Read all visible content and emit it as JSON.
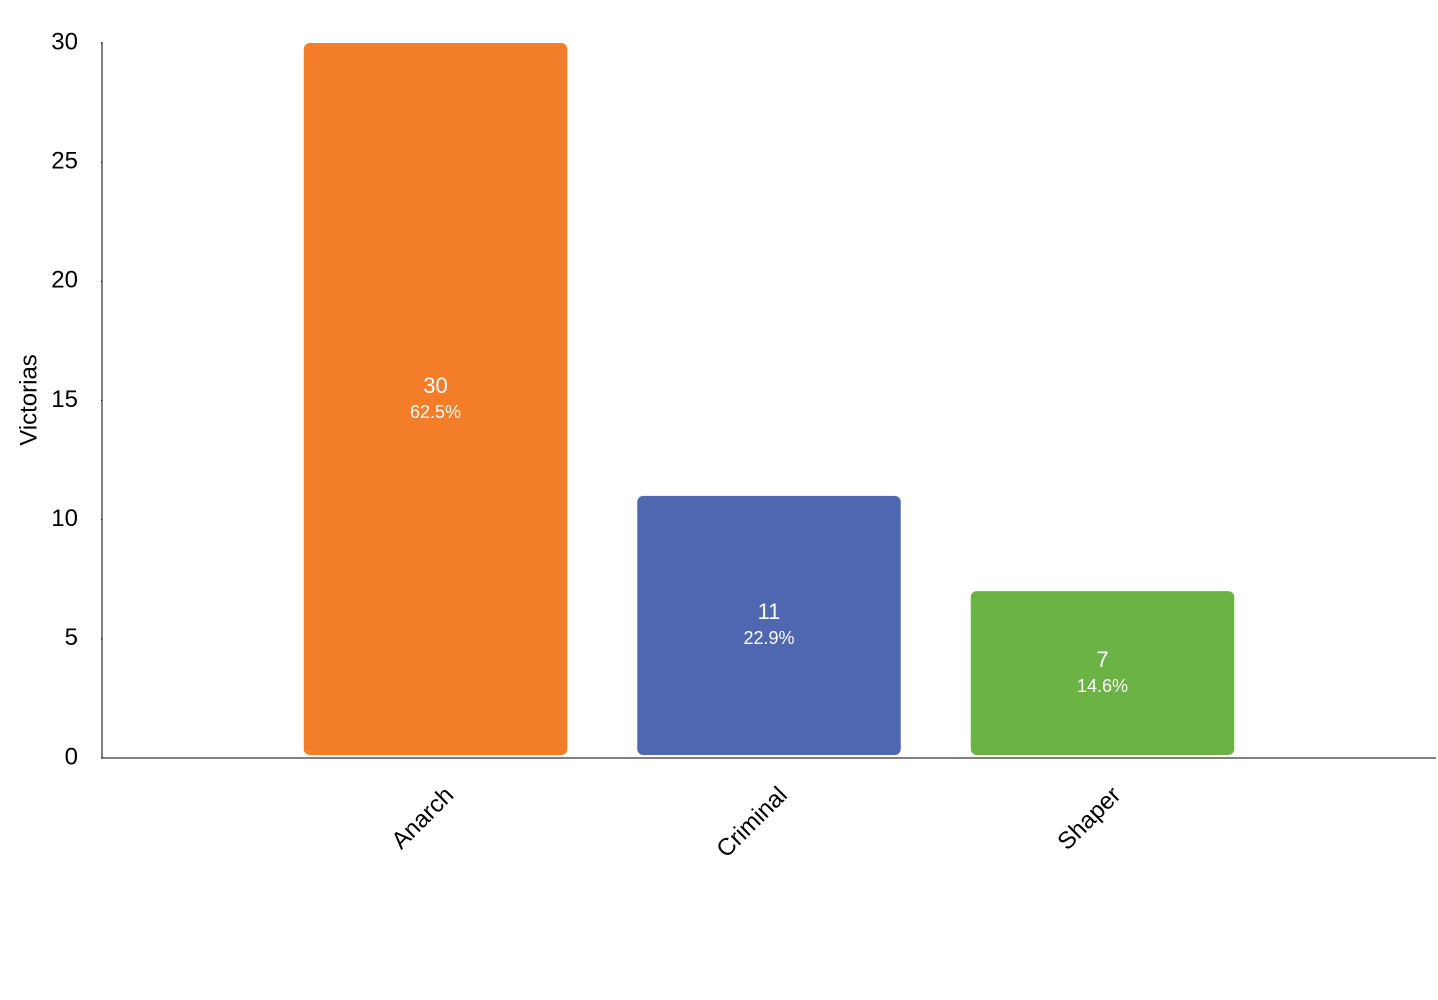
{
  "chart_data": {
    "type": "bar",
    "y_label": "Victorias",
    "categories": [
      "Anarch",
      "Criminal",
      "Shaper"
    ],
    "values": [
      30,
      11,
      7
    ],
    "percent_labels": [
      "62.5%",
      "22.9%",
      "14.6%"
    ],
    "colors": [
      "#f47d2a",
      "#4f67b0",
      "#6bb345"
    ],
    "ylim": [
      0,
      30
    ],
    "yticks": [
      0,
      5,
      10,
      15,
      20,
      25,
      30
    ],
    "grid": false
  }
}
